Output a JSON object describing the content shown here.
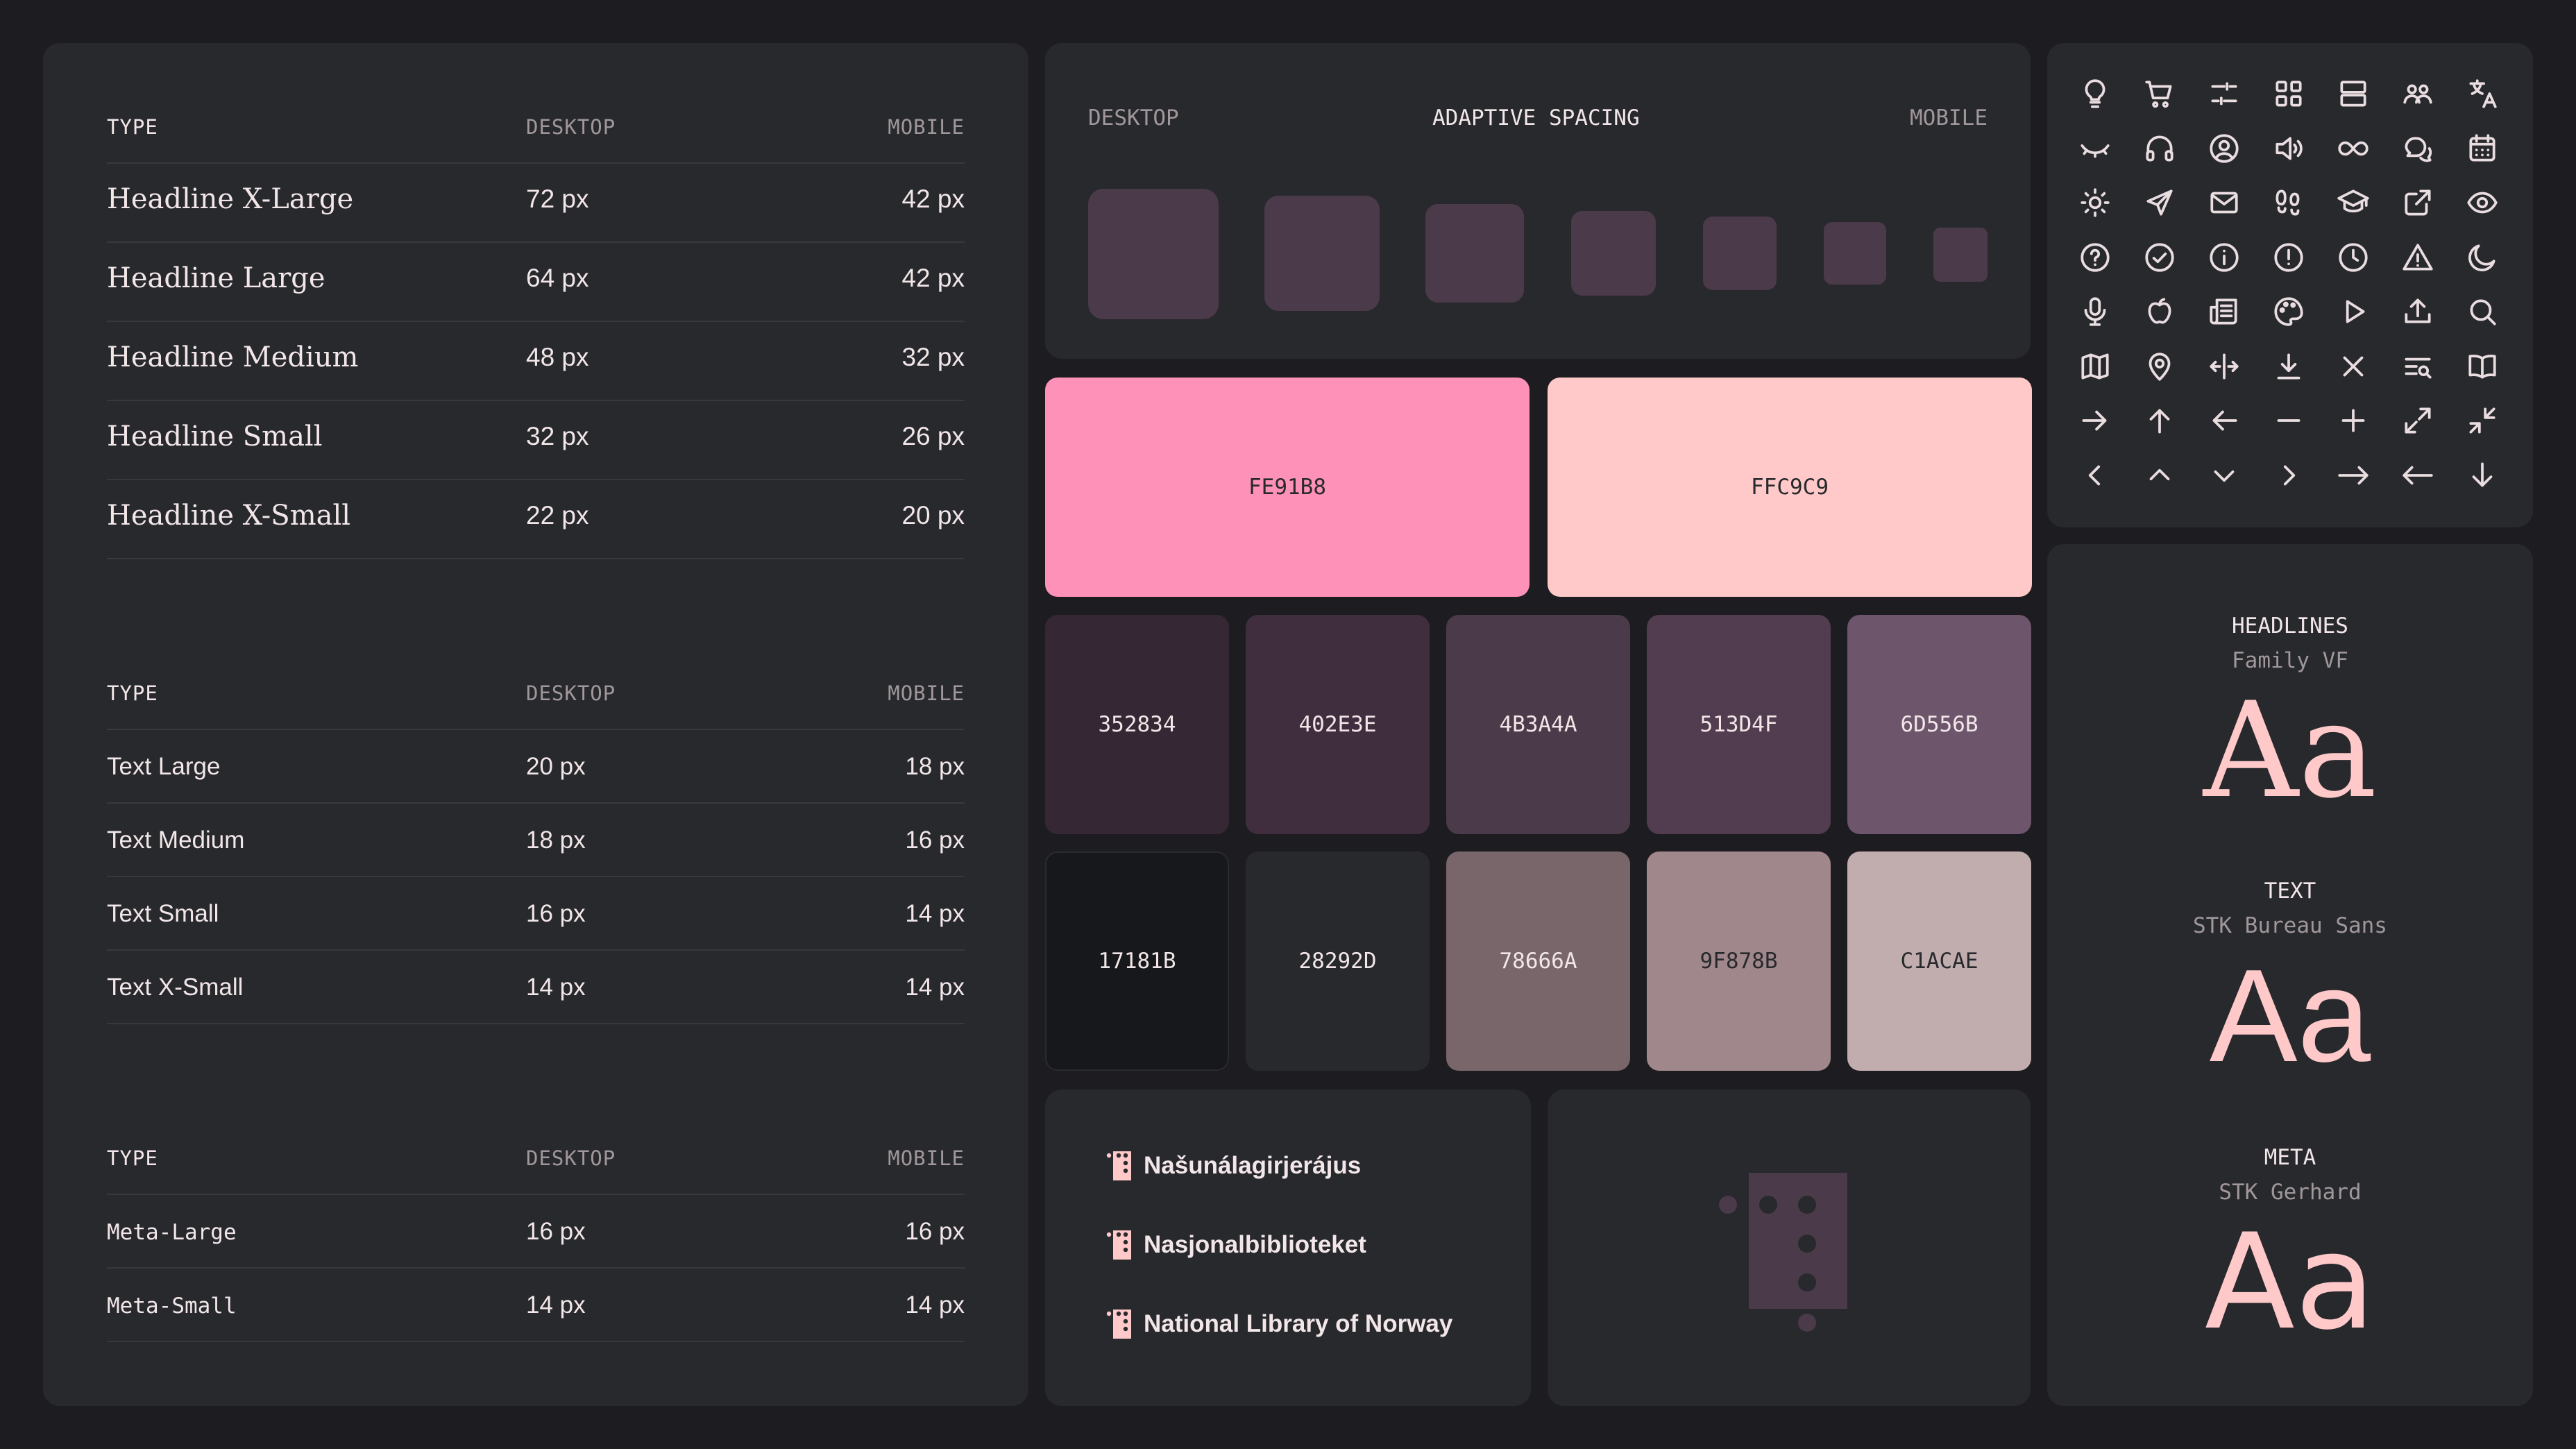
{
  "typography": {
    "headlines": {
      "col_type": "TYPE",
      "col_desktop": "DESKTOP",
      "col_mobile": "MOBILE",
      "rows": [
        {
          "name": "Headline X-Large",
          "desktop": "72 px",
          "mobile": "42 px"
        },
        {
          "name": "Headline Large",
          "desktop": "64 px",
          "mobile": "42 px"
        },
        {
          "name": "Headline Medium",
          "desktop": "48 px",
          "mobile": "32 px"
        },
        {
          "name": "Headline Small",
          "desktop": "32 px",
          "mobile": "26 px"
        },
        {
          "name": "Headline X-Small",
          "desktop": "22 px",
          "mobile": "20 px"
        }
      ]
    },
    "text": {
      "col_type": "TYPE",
      "col_desktop": "DESKTOP",
      "col_mobile": "MOBILE",
      "rows": [
        {
          "name": "Text Large",
          "desktop": "20 px",
          "mobile": "18 px"
        },
        {
          "name": "Text Medium",
          "desktop": "18 px",
          "mobile": "16 px"
        },
        {
          "name": "Text Small",
          "desktop": "16 px",
          "mobile": "14 px"
        },
        {
          "name": "Text X-Small",
          "desktop": "14 px",
          "mobile": "14 px"
        }
      ]
    },
    "meta": {
      "col_type": "TYPE",
      "col_desktop": "DESKTOP",
      "col_mobile": "MOBILE",
      "rows": [
        {
          "name": "Meta-Large",
          "desktop": "16 px",
          "mobile": "16 px"
        },
        {
          "name": "Meta-Small",
          "desktop": "14 px",
          "mobile": "14 px"
        }
      ]
    }
  },
  "spacing": {
    "left_label": "DESKTOP",
    "title": "ADAPTIVE SPACING",
    "right_label": "MOBILE",
    "square_color": "#4B3A4A"
  },
  "colors": {
    "accent": [
      {
        "hex": "FE91B8",
        "color": "#FE91B8"
      },
      {
        "hex": "FFC9C9",
        "color": "#FFC9C9"
      }
    ],
    "row1": [
      {
        "hex": "352834",
        "color": "#352834"
      },
      {
        "hex": "402E3E",
        "color": "#402E3E"
      },
      {
        "hex": "4B3A4A",
        "color": "#4B3A4A"
      },
      {
        "hex": "513D4F",
        "color": "#513D4F"
      },
      {
        "hex": "6D556B",
        "color": "#6D556B"
      }
    ],
    "row2": [
      {
        "hex": "17181B",
        "color": "#17181B"
      },
      {
        "hex": "28292D",
        "color": "#28292D"
      },
      {
        "hex": "78666A",
        "color": "#78666A"
      },
      {
        "hex": "9F878B",
        "color": "#9F878B"
      },
      {
        "hex": "C1ACAE",
        "color": "#C1ACAE"
      }
    ]
  },
  "logos": [
    {
      "name": "Našunálagirjerájus"
    },
    {
      "name": "Nasjonalbiblioteket"
    },
    {
      "name": "National Library of Norway"
    }
  ],
  "icons": [
    "lightbulb-icon",
    "cart-icon",
    "sliders-icon",
    "grid-icon",
    "list-icon",
    "users-icon",
    "translate-icon",
    "eye-closed-icon",
    "headphones-icon",
    "user-circle-icon",
    "speaker-icon",
    "infinity-icon",
    "chat-icon",
    "calendar-icon",
    "sun-icon",
    "send-icon",
    "mail-icon",
    "footsteps-icon",
    "graduation-cap-icon",
    "external-link-icon",
    "eye-icon",
    "help-circle-icon",
    "check-circle-icon",
    "info-circle-icon",
    "alert-circle-icon",
    "clock-icon",
    "warning-icon",
    "moon-icon",
    "microphone-icon",
    "apple-icon",
    "newspaper-icon",
    "palette-icon",
    "play-icon",
    "upload-icon",
    "search-icon",
    "map-icon",
    "location-pin-icon",
    "expand-horizontal-icon",
    "download-icon",
    "close-icon",
    "search-list-icon",
    "book-open-icon",
    "arrow-right-icon",
    "arrow-up-icon",
    "arrow-left-icon",
    "minus-icon",
    "plus-icon",
    "maximize-icon",
    "minimize-icon",
    "chevron-left-icon",
    "chevron-up-icon",
    "chevron-down-icon",
    "chevron-right-icon",
    "long-arrow-right-icon",
    "long-arrow-left-icon",
    "arrow-down-icon"
  ],
  "fonts": [
    {
      "label": "HEADLINES",
      "family": "Family VF",
      "sample": "Aa"
    },
    {
      "label": "TEXT",
      "family": "STK Bureau Sans",
      "sample": "Aa"
    },
    {
      "label": "META",
      "family": "STK Gerhard",
      "sample": "Aa"
    }
  ]
}
